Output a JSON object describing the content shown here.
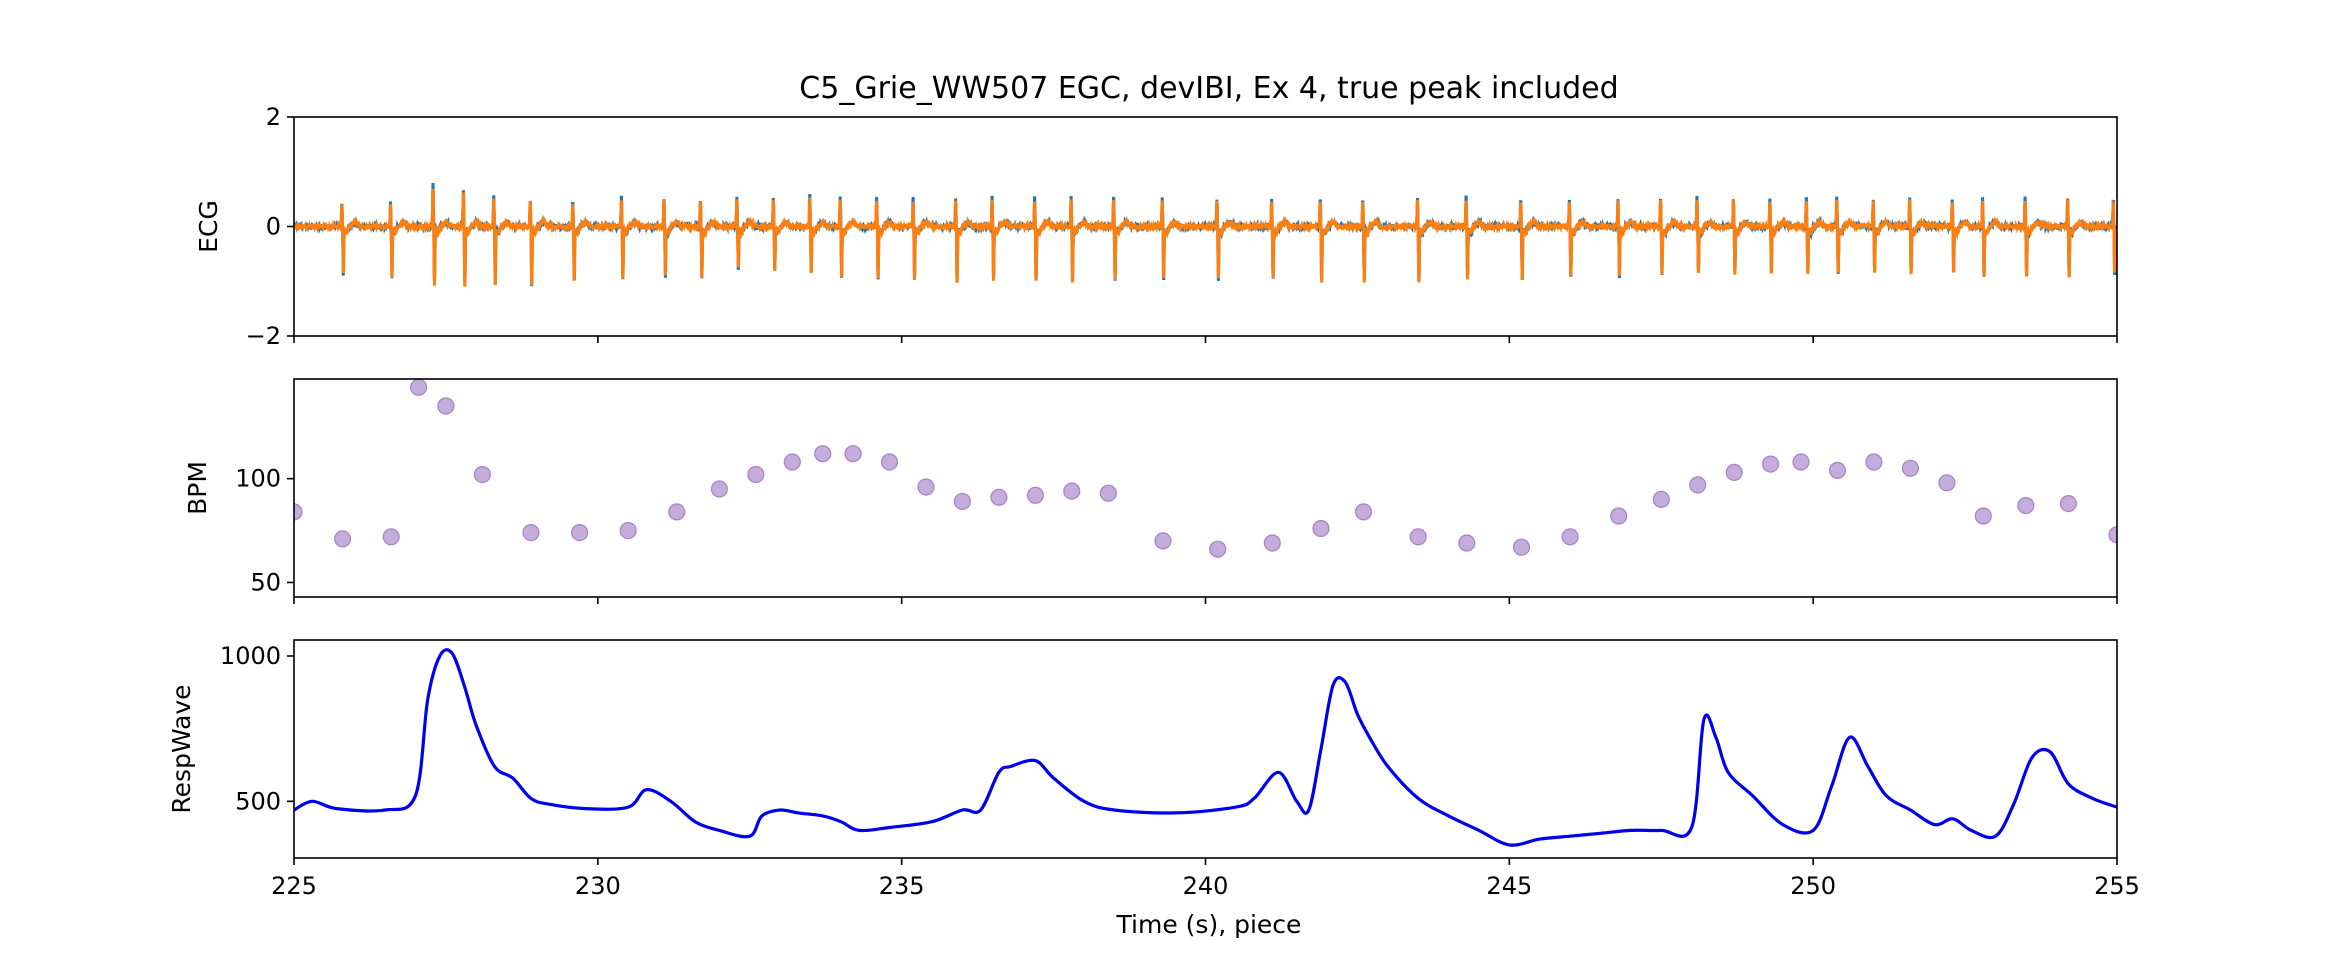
{
  "figure": {
    "title": "C5_Grie_WW507 EGC, devIBI, Ex 4, true peak included",
    "xlabel": "Time (s), piece"
  },
  "colors": {
    "ecg_raw": "#1f77b4",
    "ecg_filtered": "#ff7f0e",
    "bpm_points": "#9467bd",
    "resp_line": "#0000ee"
  },
  "chart_data": [
    {
      "type": "line",
      "name": "ecg-panel",
      "ylabel": "ECG",
      "xlim": [
        225,
        255
      ],
      "ylim": [
        -2,
        2
      ],
      "yticks": [
        -2,
        0,
        2
      ],
      "xticks": [
        225,
        230,
        235,
        240,
        245,
        250,
        255
      ],
      "show_xticklabels": false,
      "r_peak_times": [
        225.8,
        226.6,
        227.3,
        227.8,
        228.3,
        228.9,
        229.6,
        230.4,
        231.1,
        231.7,
        232.3,
        232.9,
        233.5,
        234.0,
        234.6,
        235.2,
        235.9,
        236.5,
        237.2,
        237.8,
        238.5,
        239.3,
        240.2,
        241.1,
        241.9,
        242.6,
        243.5,
        244.3,
        245.2,
        246.0,
        246.8,
        247.5,
        248.1,
        248.7,
        249.3,
        249.9,
        250.4,
        251.0,
        251.6,
        252.3,
        252.8,
        253.5,
        254.2,
        254.95
      ],
      "r_peak_up": [
        0.42,
        0.42,
        0.75,
        0.65,
        0.52,
        0.48,
        0.45,
        0.52,
        0.5,
        0.48,
        0.5,
        0.5,
        0.55,
        0.5,
        0.48,
        0.5,
        0.48,
        0.5,
        0.5,
        0.5,
        0.5,
        0.48,
        0.5,
        0.48,
        0.5,
        0.48,
        0.5,
        0.5,
        0.48,
        0.45,
        0.48,
        0.5,
        0.5,
        0.5,
        0.5,
        0.5,
        0.52,
        0.5,
        0.5,
        0.45,
        0.48,
        0.5,
        0.5,
        0.45
      ],
      "r_peak_down": [
        -0.85,
        -0.9,
        -1.05,
        -1.1,
        -1.05,
        -1.05,
        -1.0,
        -0.95,
        -0.9,
        -0.9,
        -0.75,
        -0.8,
        -0.85,
        -0.9,
        -0.95,
        -0.95,
        -1.0,
        -1.0,
        -1.0,
        -1.0,
        -0.95,
        -0.95,
        -0.95,
        -0.95,
        -1.0,
        -1.0,
        -1.0,
        -0.95,
        -0.95,
        -0.9,
        -0.9,
        -0.85,
        -0.85,
        -0.85,
        -0.85,
        -0.85,
        -0.85,
        -0.85,
        -0.85,
        -0.85,
        -0.9,
        -0.9,
        -0.9,
        -0.88
      ],
      "series": [
        {
          "color_key": "ecg_raw"
        },
        {
          "color_key": "ecg_filtered"
        }
      ]
    },
    {
      "type": "scatter",
      "name": "bpm-panel",
      "ylabel": "BPM",
      "xlim": [
        225,
        255
      ],
      "ylim": [
        43,
        148
      ],
      "yticks": [
        50,
        100
      ],
      "xticks": [
        225,
        230,
        235,
        240,
        245,
        250,
        255
      ],
      "show_xticklabels": false,
      "x": [
        225.0,
        225.8,
        226.6,
        227.05,
        227.5,
        228.1,
        228.9,
        229.7,
        230.5,
        231.3,
        232.0,
        232.6,
        233.2,
        233.7,
        234.2,
        234.8,
        235.4,
        236.0,
        236.6,
        237.2,
        237.8,
        238.4,
        239.3,
        240.2,
        241.1,
        241.9,
        242.6,
        243.5,
        244.3,
        245.2,
        246.0,
        246.8,
        247.5,
        248.1,
        248.7,
        249.3,
        249.8,
        250.4,
        251.0,
        251.6,
        252.2,
        252.8,
        253.5,
        254.2,
        255.0
      ],
      "y": [
        84,
        71,
        72,
        144,
        135,
        102,
        74,
        74,
        75,
        84,
        95,
        102,
        108,
        112,
        112,
        108,
        96,
        89,
        91,
        92,
        94,
        93,
        70,
        66,
        69,
        76,
        84,
        72,
        69,
        67,
        72,
        82,
        90,
        97,
        103,
        107,
        108,
        104,
        108,
        105,
        98,
        82,
        87,
        88,
        73
      ]
    },
    {
      "type": "line",
      "name": "resp-panel",
      "ylabel": "RespWave",
      "xlim": [
        225,
        255
      ],
      "ylim": [
        305,
        1055
      ],
      "yticks": [
        500,
        1000
      ],
      "xticks": [
        225,
        230,
        235,
        240,
        245,
        250,
        255
      ],
      "xticklabels": [
        "225",
        "230",
        "235",
        "240",
        "245",
        "250",
        "255"
      ],
      "series": [
        {
          "color_key": "resp_line",
          "x": [
            225.0,
            225.3,
            225.7,
            226.5,
            227.0,
            227.2,
            227.4,
            227.6,
            227.8,
            228.0,
            228.3,
            228.6,
            228.9,
            229.2,
            229.8,
            230.5,
            230.8,
            231.2,
            231.6,
            232.0,
            232.5,
            232.7,
            233.0,
            233.3,
            233.7,
            234.0,
            234.3,
            234.8,
            235.5,
            236.0,
            236.3,
            236.6,
            236.8,
            237.2,
            237.5,
            238.0,
            238.5,
            239.5,
            240.5,
            240.8,
            241.2,
            241.5,
            241.7,
            241.9,
            242.1,
            242.3,
            242.5,
            242.7,
            243.0,
            243.5,
            244.0,
            244.5,
            245.0,
            245.5,
            246.0,
            246.5,
            247.0,
            247.5,
            248.0,
            248.2,
            248.4,
            248.6,
            249.0,
            249.5,
            250.0,
            250.3,
            250.6,
            250.9,
            251.2,
            251.6,
            252.0,
            252.3,
            252.6,
            253.0,
            253.3,
            253.6,
            253.9,
            254.2,
            254.6,
            255.0
          ],
          "y": [
            470,
            500,
            475,
            470,
            520,
            850,
            1000,
            1010,
            900,
            760,
            620,
            580,
            510,
            490,
            475,
            480,
            540,
            500,
            430,
            400,
            380,
            450,
            470,
            460,
            450,
            430,
            400,
            410,
            430,
            470,
            470,
            600,
            620,
            640,
            580,
            500,
            470,
            460,
            480,
            510,
            600,
            500,
            470,
            680,
            900,
            910,
            800,
            720,
            620,
            510,
            450,
            400,
            350,
            370,
            380,
            390,
            400,
            400,
            410,
            780,
            720,
            600,
            520,
            420,
            400,
            550,
            720,
            620,
            520,
            470,
            420,
            440,
            400,
            380,
            490,
            650,
            670,
            560,
            510,
            480
          ]
        }
      ]
    }
  ]
}
